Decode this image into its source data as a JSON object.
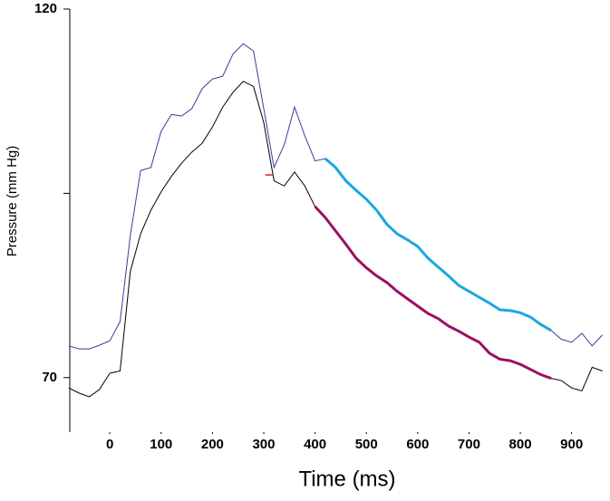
{
  "chart_data": {
    "type": "line",
    "xlabel": "Time (ms)",
    "ylabel": "Pressure (mm Hg)",
    "x": [
      -80,
      -60,
      -40,
      -20,
      0,
      20,
      40,
      60,
      80,
      100,
      120,
      140,
      160,
      180,
      200,
      220,
      240,
      260,
      280,
      300,
      320,
      340,
      360,
      380,
      400,
      420,
      440,
      460,
      480,
      500,
      520,
      540,
      560,
      580,
      600,
      620,
      640,
      660,
      680,
      700,
      720,
      740,
      760,
      780,
      800,
      820,
      840,
      860,
      880,
      900,
      920,
      940,
      960
    ],
    "series": [
      {
        "color": "#3b3b9c",
        "values": [
          74.3,
          73.9,
          73.9,
          74.4,
          75.0,
          77.6,
          89.3,
          98.1,
          98.5,
          103.4,
          105.7,
          105.5,
          106.5,
          109.2,
          110.5,
          110.9,
          113.9,
          115.3,
          114.3,
          106.5,
          98.5,
          101.6,
          106.7,
          102.8,
          99.4,
          99.7,
          98.5,
          96.7,
          95.4,
          94.2,
          92.7,
          90.8,
          89.5,
          88.7,
          87.8,
          86.2,
          85.0,
          83.8,
          82.5,
          81.7,
          80.9,
          80.1,
          79.2,
          79.1,
          78.8,
          78.2,
          77.2,
          76.4,
          75.2,
          74.8,
          76.0,
          74.3,
          75.8
        ],
        "highlight": {
          "from": 420,
          "to": 860,
          "color": "#1aa7e0"
        }
      },
      {
        "color": "#000000",
        "values": [
          68.6,
          67.9,
          67.4,
          68.4,
          70.6,
          70.9,
          84.4,
          89.5,
          92.7,
          95.2,
          97.3,
          99.1,
          100.6,
          101.8,
          104.0,
          106.7,
          108.7,
          110.2,
          109.5,
          104.6,
          96.7,
          96.0,
          97.9,
          96.0,
          93.2,
          91.7,
          89.9,
          88.1,
          86.2,
          84.9,
          83.8,
          82.9,
          81.7,
          80.7,
          79.7,
          78.7,
          78.0,
          77.0,
          76.3,
          75.5,
          74.8,
          73.3,
          72.5,
          72.3,
          71.8,
          71.1,
          70.4,
          69.9,
          69.6,
          68.6,
          68.2,
          71.4,
          70.9
        ],
        "highlight": {
          "from": 400,
          "to": 860,
          "color": "#9c1060"
        }
      }
    ],
    "marker": {
      "x": 310,
      "y": 97.5,
      "color": "#dd2222"
    },
    "xlim": [
      -78,
      973
    ],
    "ylim": [
      62.6,
      120
    ],
    "xticks": [
      0,
      100,
      200,
      300,
      400,
      500,
      600,
      700,
      800,
      900
    ],
    "yticks": [
      70,
      {
        "value": 95,
        "label": null
      },
      120
    ]
  }
}
